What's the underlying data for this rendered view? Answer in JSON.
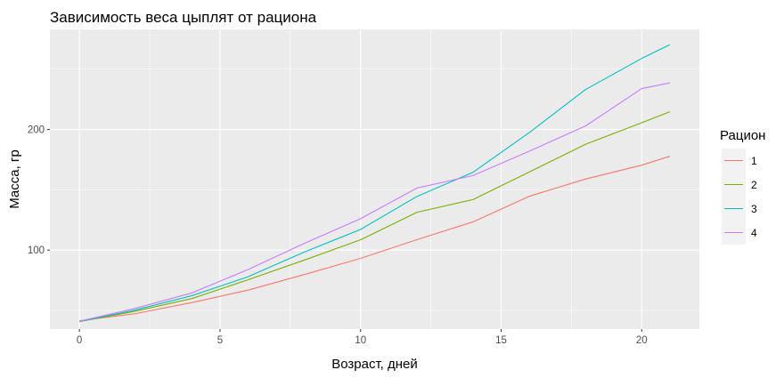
{
  "chart_data": {
    "type": "line",
    "title": "Зависимость веса цыплят от рациона",
    "xlabel": "Возраст, дней",
    "ylabel": "Масса, гр",
    "xlim": [
      -1.05,
      22.05
    ],
    "ylim": [
      34.5,
      283
    ],
    "x_ticks": [
      0,
      5,
      10,
      15,
      20
    ],
    "x_tick_labels": [
      "0",
      "5",
      "10",
      "15",
      "20"
    ],
    "y_ticks": [
      100,
      200
    ],
    "y_tick_labels": [
      "100",
      "200"
    ],
    "grid": true,
    "legend_position": "right",
    "legend_title": "Рацион",
    "x": [
      0,
      2,
      4,
      6,
      8,
      10,
      12,
      14,
      16,
      18,
      20,
      21
    ],
    "series": [
      {
        "name": "1",
        "color": "#F8766D",
        "values": [
          41.4,
          47.3,
          56.5,
          66.8,
          79.7,
          93.1,
          108.6,
          123.4,
          144.6,
          158.9,
          170.4,
          177.8
        ]
      },
      {
        "name": "2",
        "color": "#7CAE00",
        "values": [
          40.7,
          49.4,
          59.8,
          75.4,
          91.7,
          108.5,
          131.3,
          141.9,
          164.7,
          187.7,
          205.6,
          214.7
        ]
      },
      {
        "name": "3",
        "color": "#00BFC4",
        "values": [
          40.8,
          50.4,
          62.2,
          77.9,
          98.4,
          117.1,
          144.4,
          164.5,
          197.4,
          233.1,
          258.9,
          270.3
        ]
      },
      {
        "name": "4",
        "color": "#C77CFF",
        "values": [
          41.0,
          51.8,
          64.5,
          83.9,
          105.6,
          126.0,
          151.4,
          161.8,
          182.0,
          202.9,
          233.9,
          238.6
        ]
      }
    ]
  }
}
